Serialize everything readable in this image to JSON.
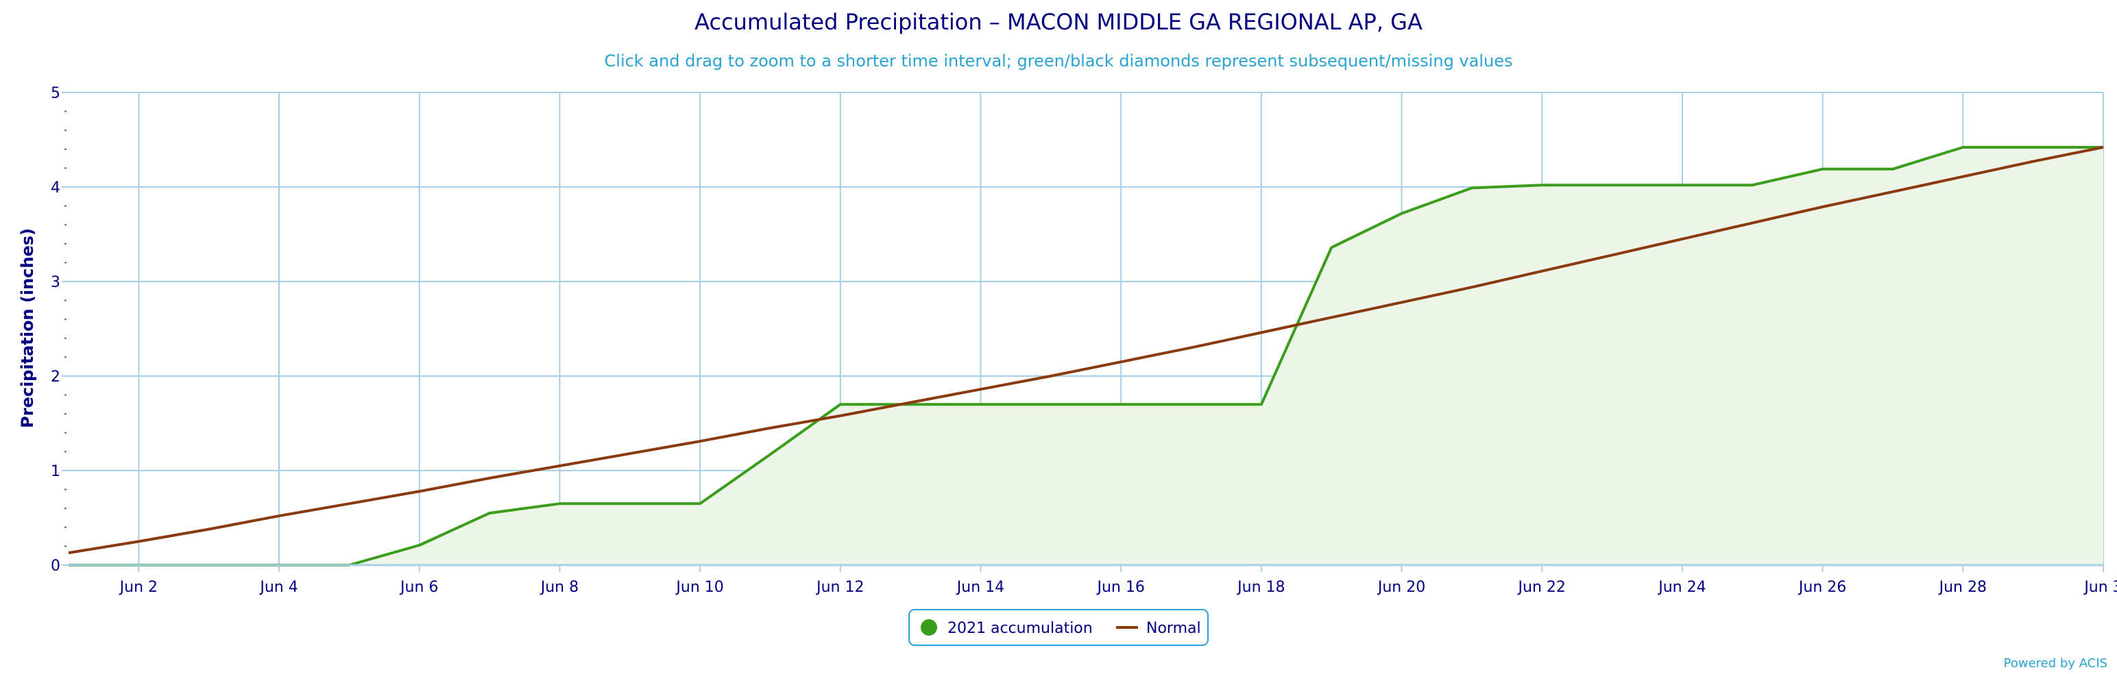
{
  "chart_data": {
    "type": "area",
    "title": "Accumulated Precipitation – MACON MIDDLE GA REGIONAL AP, GA",
    "subtitle": "Click and drag to zoom to a shorter time interval; green/black diamonds represent subsequent/missing values",
    "ylabel": "Precipitation (inches)",
    "xlabel": "",
    "xlim": [
      1,
      30
    ],
    "ylim": [
      0,
      5
    ],
    "y_ticks": [
      "0",
      "1",
      "2",
      "3",
      "4",
      "5"
    ],
    "x_ticks": [
      {
        "day": 2,
        "label": "Jun 2"
      },
      {
        "day": 4,
        "label": "Jun 4"
      },
      {
        "day": 6,
        "label": "Jun 6"
      },
      {
        "day": 8,
        "label": "Jun 8"
      },
      {
        "day": 10,
        "label": "Jun 10"
      },
      {
        "day": 12,
        "label": "Jun 12"
      },
      {
        "day": 14,
        "label": "Jun 14"
      },
      {
        "day": 16,
        "label": "Jun 16"
      },
      {
        "day": 18,
        "label": "Jun 18"
      },
      {
        "day": 20,
        "label": "Jun 20"
      },
      {
        "day": 22,
        "label": "Jun 22"
      },
      {
        "day": 24,
        "label": "Jun 24"
      },
      {
        "day": 26,
        "label": "Jun 26"
      },
      {
        "day": 28,
        "label": "Jun 28"
      },
      {
        "day": 30,
        "label": "Jun 3"
      }
    ],
    "grid": true,
    "legend_position": "bottom-center",
    "series": [
      {
        "name": "2021 accumulation",
        "kind": "area",
        "color": "#3a9e1c",
        "fill": "#edf5e8",
        "x": [
          1,
          2,
          3,
          4,
          5,
          6,
          7,
          8,
          9,
          10,
          11,
          12,
          13,
          14,
          15,
          16,
          17,
          18,
          19,
          20,
          21,
          22,
          23,
          24,
          25,
          26,
          27,
          28,
          29,
          30
        ],
        "y": [
          0,
          0,
          0,
          0,
          0,
          0.21,
          0.55,
          0.65,
          0.65,
          0.65,
          1.17,
          1.7,
          1.7,
          1.7,
          1.7,
          1.7,
          1.7,
          1.7,
          3.36,
          3.72,
          3.99,
          4.02,
          4.02,
          4.02,
          4.02,
          4.19,
          4.19,
          4.42,
          4.42,
          4.42
        ]
      },
      {
        "name": "Normal",
        "kind": "line",
        "color": "#8b3a0e",
        "x": [
          1,
          2,
          3,
          4,
          5,
          6,
          7,
          8,
          9,
          10,
          11,
          12,
          13,
          14,
          15,
          16,
          17,
          18,
          19,
          20,
          21,
          22,
          23,
          24,
          25,
          26,
          27,
          28,
          29,
          30
        ],
        "y": [
          0.13,
          0.25,
          0.38,
          0.52,
          0.65,
          0.78,
          0.92,
          1.05,
          1.18,
          1.31,
          1.45,
          1.58,
          1.72,
          1.86,
          2.0,
          2.15,
          2.3,
          2.46,
          2.62,
          2.78,
          2.94,
          3.11,
          3.28,
          3.45,
          3.62,
          3.79,
          3.95,
          4.11,
          4.27,
          4.42
        ]
      }
    ]
  },
  "legend": {
    "items": [
      "2021 accumulation",
      "Normal"
    ]
  },
  "credits": {
    "text": "Powered by ACIS"
  },
  "colors": {
    "title": "#000080",
    "subtitle": "#29a3d1",
    "grid": "#a8cfe6",
    "accumulation": "#3a9e1c",
    "accumulation_fill": "#edf5e8",
    "normal": "#8b3a0e"
  }
}
